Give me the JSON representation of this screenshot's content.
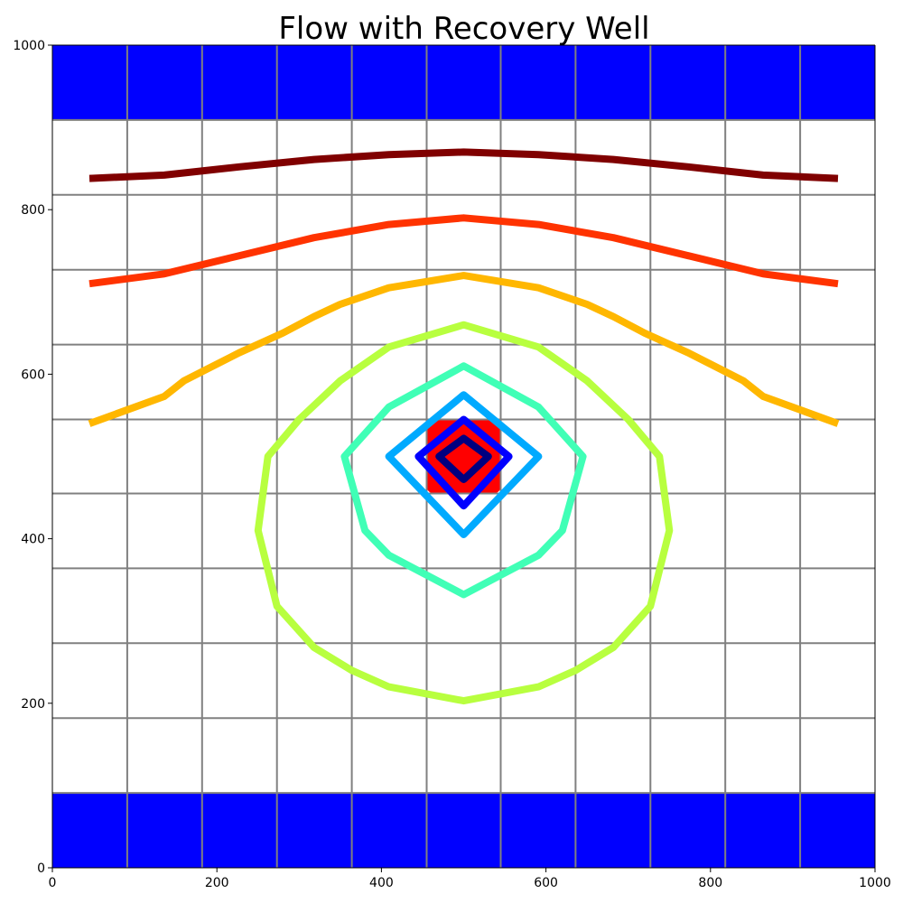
{
  "chart_data": {
    "type": "contour",
    "title": "Flow with Recovery Well",
    "xlabel": "",
    "ylabel": "",
    "xlim": [
      0,
      1000
    ],
    "ylim": [
      0,
      1000
    ],
    "xticks": [
      0,
      200,
      400,
      600,
      800,
      1000
    ],
    "yticks": [
      0,
      200,
      400,
      600,
      800,
      1000
    ],
    "grid": true,
    "grid_color": "#808080",
    "grid_x": [
      91,
      182,
      273,
      364,
      455,
      545,
      636,
      727,
      818,
      909
    ],
    "grid_y": [
      91,
      182,
      273,
      364,
      455,
      545,
      636,
      727,
      818,
      909
    ],
    "boundary_regions": [
      {
        "y_range": [
          909,
          1000
        ],
        "x_range": [
          0,
          1000
        ],
        "color": "#0000ff"
      },
      {
        "y_range": [
          0,
          91
        ],
        "x_range": [
          0,
          1000
        ],
        "color": "#0000ff"
      }
    ],
    "well": {
      "x_range": [
        455,
        545
      ],
      "y_range": [
        455,
        545
      ],
      "color": "#ff0000"
    },
    "contours": [
      {
        "color": "#800000",
        "closed": false,
        "points": [
          [
            45,
            838
          ],
          [
            136,
            842
          ],
          [
            227,
            852
          ],
          [
            318,
            861
          ],
          [
            409,
            867
          ],
          [
            500,
            870
          ],
          [
            591,
            867
          ],
          [
            682,
            861
          ],
          [
            773,
            852
          ],
          [
            864,
            842
          ],
          [
            955,
            838
          ]
        ]
      },
      {
        "color": "#ff3300",
        "closed": false,
        "points": [
          [
            45,
            710
          ],
          [
            136,
            722
          ],
          [
            227,
            744
          ],
          [
            318,
            766
          ],
          [
            409,
            782
          ],
          [
            500,
            790
          ],
          [
            591,
            782
          ],
          [
            682,
            766
          ],
          [
            773,
            744
          ],
          [
            864,
            722
          ],
          [
            955,
            710
          ]
        ]
      },
      {
        "color": "#ffb700",
        "closed": false,
        "points": [
          [
            45,
            540
          ],
          [
            136,
            573
          ],
          [
            160,
            592
          ],
          [
            227,
            626
          ],
          [
            280,
            650
          ],
          [
            318,
            670
          ],
          [
            350,
            685
          ],
          [
            409,
            705
          ],
          [
            500,
            720
          ],
          [
            591,
            705
          ],
          [
            650,
            685
          ],
          [
            682,
            670
          ],
          [
            720,
            650
          ],
          [
            773,
            626
          ],
          [
            840,
            592
          ],
          [
            864,
            573
          ],
          [
            955,
            540
          ]
        ]
      },
      {
        "color": "#b8ff3f",
        "closed": true,
        "points": [
          [
            500,
            660
          ],
          [
            591,
            633
          ],
          [
            650,
            592
          ],
          [
            700,
            545
          ],
          [
            738,
            500
          ],
          [
            750,
            410
          ],
          [
            727,
            318
          ],
          [
            682,
            268
          ],
          [
            636,
            240
          ],
          [
            591,
            220
          ],
          [
            500,
            203
          ],
          [
            409,
            220
          ],
          [
            364,
            240
          ],
          [
            318,
            268
          ],
          [
            273,
            318
          ],
          [
            250,
            410
          ],
          [
            262,
            500
          ],
          [
            300,
            545
          ],
          [
            350,
            592
          ],
          [
            409,
            633
          ]
        ]
      },
      {
        "color": "#40ffb6",
        "closed": true,
        "points": [
          [
            500,
            610
          ],
          [
            591,
            560
          ],
          [
            645,
            500
          ],
          [
            620,
            410
          ],
          [
            591,
            380
          ],
          [
            500,
            332
          ],
          [
            409,
            380
          ],
          [
            380,
            410
          ],
          [
            355,
            500
          ],
          [
            409,
            560
          ]
        ]
      },
      {
        "color": "#00aaff",
        "closed": true,
        "points": [
          [
            500,
            575
          ],
          [
            591,
            500
          ],
          [
            500,
            405
          ],
          [
            409,
            500
          ]
        ]
      },
      {
        "color": "#0000ff",
        "closed": true,
        "points": [
          [
            500,
            545
          ],
          [
            555,
            500
          ],
          [
            500,
            440
          ],
          [
            445,
            500
          ]
        ]
      },
      {
        "color": "#000080",
        "closed": true,
        "points": [
          [
            500,
            522
          ],
          [
            530,
            500
          ],
          [
            500,
            472
          ],
          [
            470,
            500
          ]
        ]
      }
    ]
  }
}
